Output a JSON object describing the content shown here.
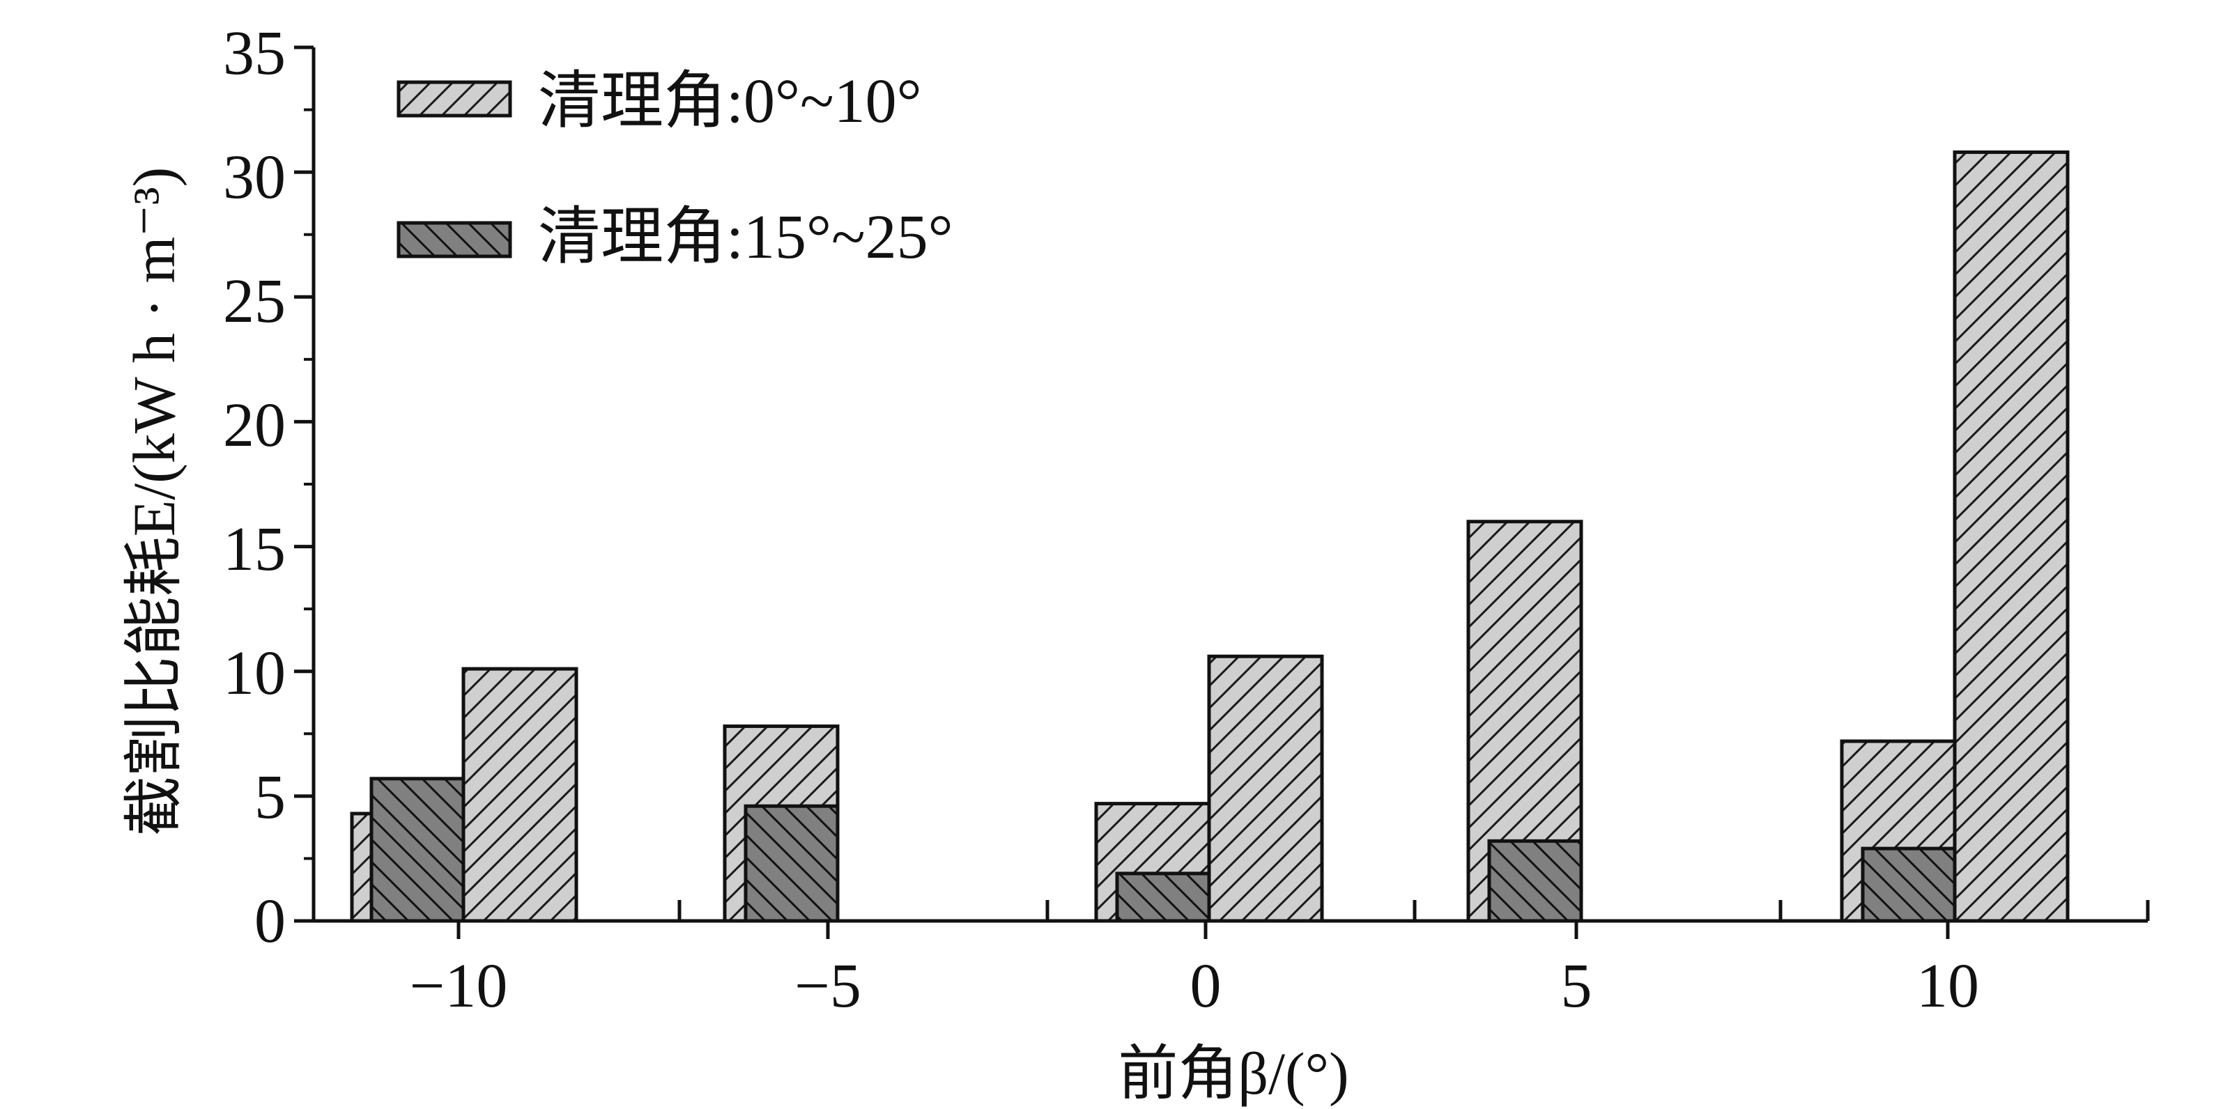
{
  "chart_data": {
    "type": "bar",
    "xlabel": "前角β/(°)",
    "ylabel": "截割比能耗E/(kW h · m⁻³)",
    "ylim": [
      0,
      35
    ],
    "yticks": [
      0,
      5,
      10,
      15,
      20,
      25,
      30,
      35
    ],
    "categories": [
      "−10",
      "−5",
      "0",
      "5",
      "10"
    ],
    "legend_position": "top-left",
    "grid": false,
    "series": [
      {
        "name": "清理角:0°~10°",
        "color": "#cfcfcf",
        "hatch": "diagonal-up",
        "groups": [
          [
            4.3,
            10.1
          ],
          [
            7.8
          ],
          [
            4.7,
            10.6
          ],
          [
            16.0
          ],
          [
            7.2,
            30.8
          ]
        ]
      },
      {
        "name": "清理角:15°~25°",
        "color": "#808080",
        "hatch": "diagonal-down",
        "groups": [
          [
            5.7
          ],
          [
            4.6
          ],
          [
            1.9
          ],
          [
            3.2
          ],
          [
            2.9
          ]
        ]
      }
    ]
  }
}
